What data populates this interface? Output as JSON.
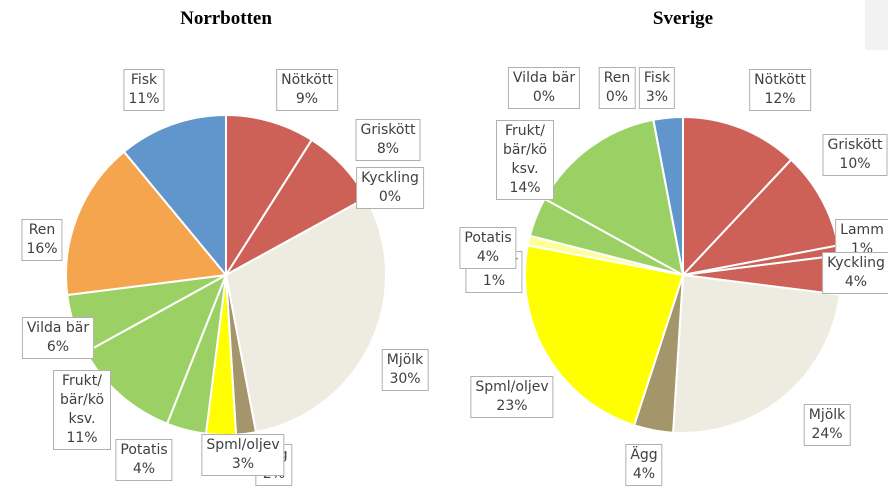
{
  "chart_data": [
    {
      "type": "pie",
      "title": "Norrbotten",
      "categories": [
        "Nötkött",
        "Griskött",
        "Kyckling",
        "Mjölk",
        "Ägg",
        "Spml/oljev",
        "Potatis",
        "Frukt/bär/köksv.",
        "Vilda bär",
        "Ren",
        "Fisk"
      ],
      "values": [
        9,
        8,
        0,
        30,
        2,
        3,
        4,
        11,
        6,
        16,
        11
      ],
      "value_labels": [
        "9%",
        "8%",
        "0%",
        "30%",
        "2%",
        "3%",
        "4%",
        "11%",
        "6%",
        "16%",
        "11%"
      ],
      "colors": [
        "#cd6158",
        "#cd6158",
        "#cd6158",
        "#eeece1",
        "#a5956b",
        "#ffff00",
        "#9bd164",
        "#9bd164",
        "#9bd164",
        "#f6a54f",
        "#6096cc"
      ]
    },
    {
      "type": "pie",
      "title": "Sverige",
      "categories": [
        "Nötkött",
        "Griskött",
        "Lamm",
        "Kyckling",
        "Mjölk",
        "Ägg",
        "Spml/oljev",
        "Socker",
        "Potatis",
        "Frukt/bär/köksv.",
        "Vilda bär",
        "Ren",
        "Fisk"
      ],
      "values": [
        12,
        10,
        1,
        4,
        24,
        4,
        23,
        1,
        4,
        14,
        0,
        0,
        3
      ],
      "value_labels": [
        "12%",
        "10%",
        "1%",
        "4%",
        "24%",
        "4%",
        "23%",
        "1%",
        "4%",
        "14%",
        "0%",
        "0%",
        "3%"
      ],
      "colors": [
        "#cd6158",
        "#cd6158",
        "#cd6158",
        "#cd6158",
        "#eeece1",
        "#a5956b",
        "#ffff00",
        "#ffff99",
        "#9bd164",
        "#9bd164",
        "#9bd164",
        "#f6a54f",
        "#6096cc"
      ]
    }
  ]
}
